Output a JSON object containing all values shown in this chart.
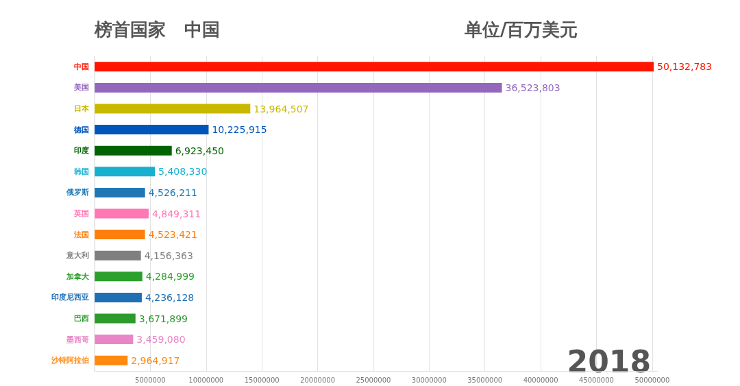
{
  "chart_data": {
    "type": "bar",
    "orientation": "horizontal",
    "title": "榜首国家   中国",
    "subtitle": "单位/百万美元",
    "annotations": [
      "2018"
    ],
    "categories": [
      "中国",
      "美国",
      "日本",
      "德国",
      "印度",
      "韩国",
      "俄罗斯",
      "英国",
      "法国",
      "意大利",
      "加拿大",
      "印度尼西亚",
      "巴西",
      "墨西哥",
      "沙特阿拉伯"
    ],
    "values": [
      50132783,
      36523803,
      13964507,
      10225915,
      6923450,
      5408330,
      4526211,
      4849311,
      4523421,
      4156363,
      4284999,
      4236128,
      3671899,
      3459080,
      2964917
    ],
    "value_labels": [
      "50,132,783",
      "36,523,803",
      "13,964,507",
      "10,225,915",
      "6,923,450",
      "5,408,330",
      "4,526,211",
      "4,849,311",
      "4,523,421",
      "4,156,363",
      "4,284,999",
      "4,236,128",
      "3,671,899",
      "3,459,080",
      "2,964,917"
    ],
    "colors": [
      "#ff1500",
      "#9467bd",
      "#c8b900",
      "#0055bb",
      "#006400",
      "#17b0d0",
      "#1f77b4",
      "#ff77b4",
      "#ff7f0e",
      "#7f7f7f",
      "#2ca02c",
      "#1f6fb4",
      "#2c9a2c",
      "#e886c8",
      "#ff8a10"
    ],
    "xlim": [
      0,
      50500000
    ],
    "xticks": [
      5000000,
      10000000,
      15000000,
      20000000,
      25000000,
      30000000,
      35000000,
      40000000,
      45000000,
      50000000
    ],
    "grid": "x"
  }
}
